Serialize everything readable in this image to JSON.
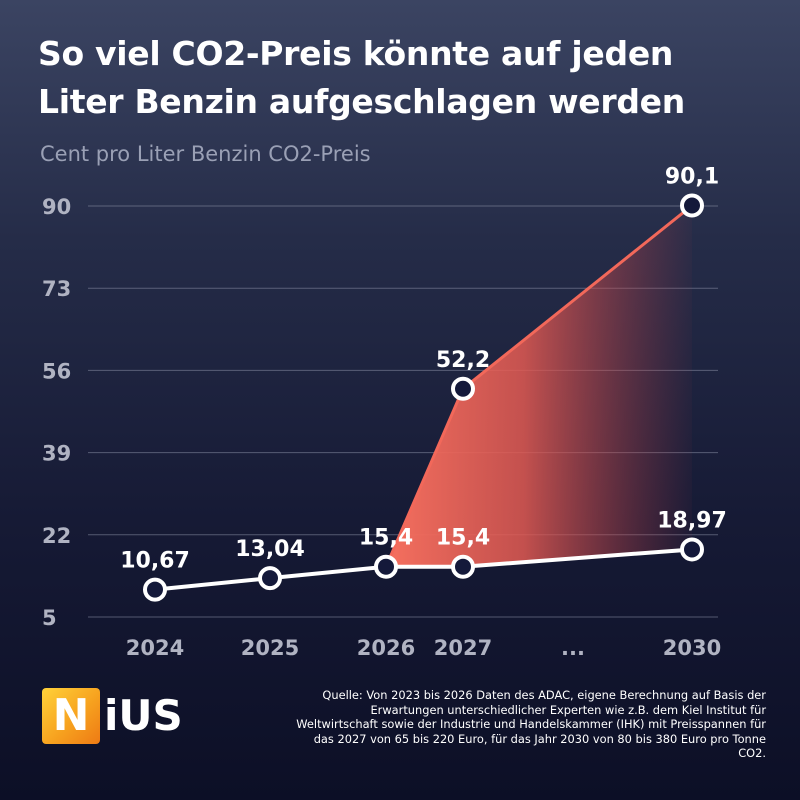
{
  "title_line1": "So viel CO2-Preis könnte auf jeden",
  "title_line2": "Liter Benzin aufgeschlagen werden",
  "subtitle": "Cent pro Liter Benzin CO2-Preis",
  "logo": {
    "letter": "N",
    "rest": "iUS"
  },
  "source": "Quelle: Von 2023 bis 2026 Daten des ADAC, eigene Berechnung auf Basis der Erwartungen unterschiedlicher Experten wie z.B. dem Kiel Institut für Weltwirtschaft sowie der Industrie und Handelskammer (IHK) mit Preisspannen für das 2027 von 65 bis 220 Euro, für das Jahr 2030 von 80 bis 380 Euro pro Tonne CO2.",
  "colors": {
    "low_line": "#ffffff",
    "high_area": "#f2685a",
    "grid": "#8a8fa6",
    "axis_text": "#b0b3c2"
  },
  "chart_data": {
    "type": "line",
    "title": "So viel CO2-Preis könnte auf jeden Liter Benzin aufgeschlagen werden",
    "ylabel": "Cent pro Liter Benzin CO2-Preis",
    "categories": [
      "2024",
      "2025",
      "2026",
      "2027",
      "...",
      "2030"
    ],
    "yticks": [
      "90",
      "73",
      "56",
      "39",
      "22",
      "5"
    ],
    "ylim": [
      5,
      90
    ],
    "grid": true,
    "series": [
      {
        "points": [
          {
            "x": "2024",
            "y": 10.67,
            "label": "10,67"
          },
          {
            "x": "2025",
            "y": 13.04,
            "label": "13,04"
          },
          {
            "x": "2026",
            "y": 15.4,
            "label": "15,4"
          },
          {
            "x": "2027",
            "y": 15.4,
            "label": "15,4"
          },
          {
            "x": "2030",
            "y": 18.97,
            "label": "18,97"
          }
        ]
      },
      {
        "points": [
          {
            "x": "2026",
            "y": 15.4
          },
          {
            "x": "2027",
            "y": 52.2,
            "label": "52,2"
          },
          {
            "x": "2030",
            "y": 90.1,
            "label": "90,1"
          }
        ]
      }
    ]
  }
}
